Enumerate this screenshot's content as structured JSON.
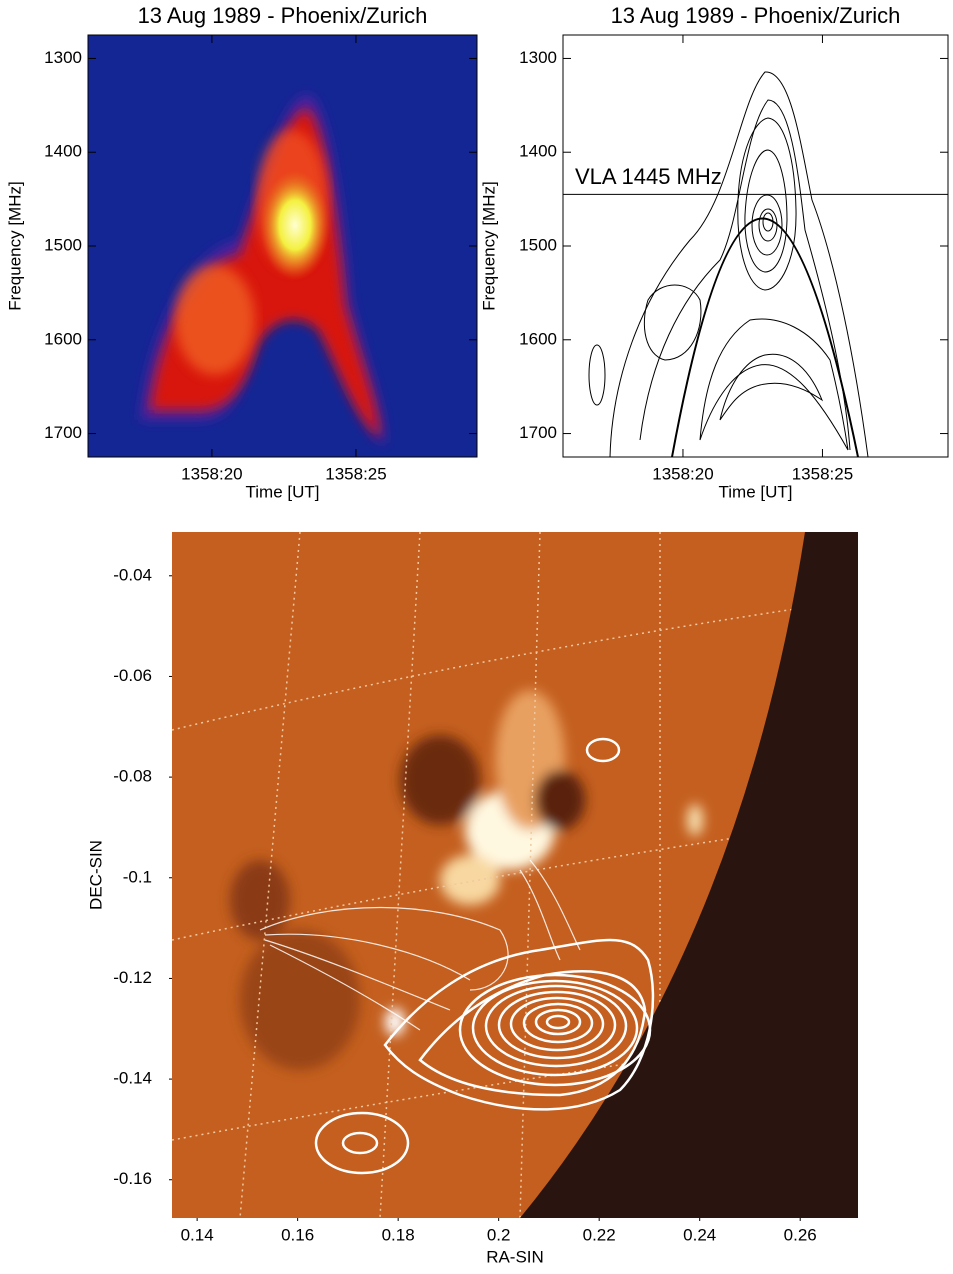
{
  "chart_data": [
    {
      "type": "spectrogram",
      "title": "13 Aug 1989 - Phoenix/Zurich",
      "xlabel": "Time [UT]",
      "ylabel": "Frequency [MHz]",
      "xlim": [
        15.7,
        29.2
      ],
      "xticks": [
        {
          "value": 20,
          "label": "1358:20"
        },
        {
          "value": 25,
          "label": "1358:25"
        }
      ],
      "ylim": [
        1275,
        1725
      ],
      "yticks": [
        1300,
        1400,
        1500,
        1600,
        1700
      ],
      "y_reversed": true
    },
    {
      "type": "contour",
      "title": "13 Aug 1989 - Phoenix/Zurich",
      "xlabel": "Time [UT]",
      "ylabel": "Frequency [MHz]",
      "xlim": [
        15.7,
        29.5
      ],
      "xticks": [
        {
          "value": 20,
          "label": "1358:20"
        },
        {
          "value": 25,
          "label": "1358:25"
        }
      ],
      "ylim": [
        1275,
        1725
      ],
      "yticks": [
        1300,
        1400,
        1500,
        1600,
        1700
      ],
      "y_reversed": true,
      "annotation": {
        "text": "VLA 1445 MHz",
        "y": 1445
      }
    },
    {
      "type": "image",
      "xlabel": "RA-SIN",
      "ylabel": "DEC-SIN",
      "xlim": [
        0.135,
        0.2715
      ],
      "xticks": [
        0.14,
        0.16,
        0.18,
        0.2,
        0.22,
        0.24,
        0.26
      ],
      "ylim": [
        -0.1676,
        -0.0313
      ],
      "yticks": [
        -0.04,
        -0.06,
        -0.08,
        -0.1,
        -0.12,
        -0.14,
        -0.16
      ],
      "y_reversed": false
    }
  ]
}
